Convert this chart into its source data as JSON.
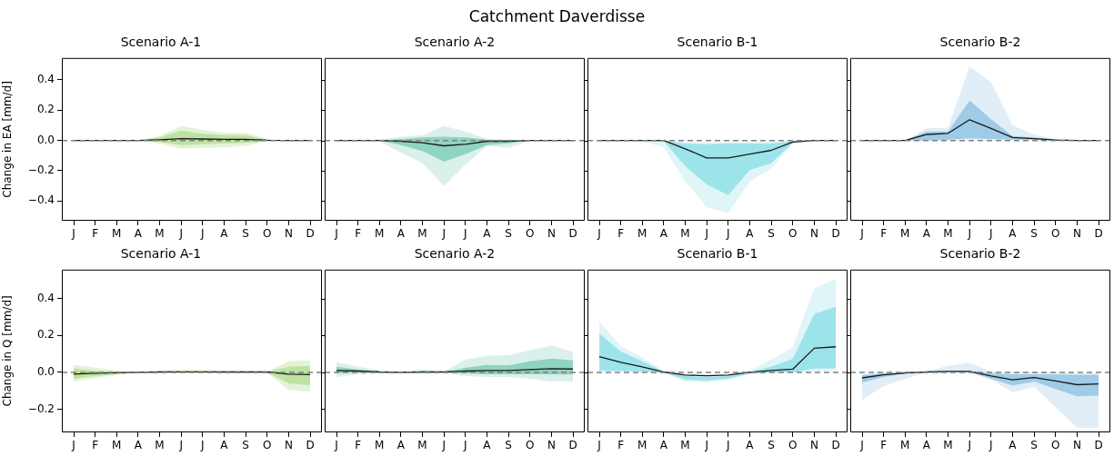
{
  "chart_data": [
    {
      "type": "line",
      "title": "Scenario A-1",
      "ylabel": "Change in EA [mm/d]",
      "annotations": [
        "Catchment Daverdisse"
      ],
      "categories": [
        "J",
        "F",
        "M",
        "A",
        "M",
        "J",
        "J",
        "A",
        "S",
        "O",
        "N",
        "D"
      ],
      "ylim": [
        -0.53,
        0.545
      ],
      "yticks": [
        {
          "value": -0.4,
          "label": "−0.4"
        },
        {
          "value": -0.2,
          "label": "−0.2"
        },
        {
          "value": 0,
          "label": "0.0"
        },
        {
          "value": 0.2,
          "label": "0.2"
        },
        {
          "value": 0.4,
          "label": "0.4"
        }
      ],
      "ref_lines": [
        {
          "axis": "y",
          "value": 0,
          "color": "#808080",
          "line_style": "dashed"
        }
      ],
      "series": [
        {
          "color": "#e3f3d6",
          "values": [
            null,
            null,
            null,
            null,
            null,
            null,
            null,
            null,
            null,
            null,
            null,
            null
          ],
          "lower": [
            0,
            0,
            0,
            0,
            -0.02,
            -0.055,
            -0.05,
            -0.045,
            -0.035,
            -0.005,
            0,
            0
          ],
          "upper": [
            0,
            0,
            0,
            0,
            0.03,
            0.095,
            0.07,
            0.05,
            0.05,
            0.01,
            0,
            0
          ]
        },
        {
          "color": "#bde3a0",
          "values": [
            null,
            null,
            null,
            null,
            null,
            null,
            null,
            null,
            null,
            null,
            null,
            null
          ],
          "lower": [
            0,
            0,
            0,
            0,
            -0.01,
            -0.03,
            -0.025,
            -0.02,
            -0.015,
            -0.002,
            0,
            0
          ],
          "upper": [
            0,
            0,
            0,
            0,
            0.02,
            0.065,
            0.045,
            0.035,
            0.035,
            0.005,
            0,
            0
          ]
        },
        {
          "color": "#1a1a1a",
          "values": [
            0,
            0,
            0,
            0,
            0.005,
            0.012,
            0.01,
            0.008,
            0.008,
            0.002,
            0,
            0
          ]
        }
      ]
    },
    {
      "type": "line",
      "title": "Scenario A-2",
      "categories": [
        "J",
        "F",
        "M",
        "A",
        "M",
        "J",
        "J",
        "A",
        "S",
        "O",
        "N",
        "D"
      ],
      "ylim": [
        -0.53,
        0.545
      ],
      "yticks": [
        -0.4,
        -0.2,
        0,
        0.2,
        0.4
      ],
      "tick_labels": "x",
      "ref_lines": [
        {
          "axis": "y",
          "value": 0,
          "color": "#808080",
          "line_style": "dashed"
        }
      ],
      "series": [
        {
          "color": "#dbf0ea",
          "values": [
            null,
            null,
            null,
            null,
            null,
            null,
            null,
            null,
            null,
            null,
            null,
            null
          ],
          "lower": [
            0,
            0,
            -0.005,
            -0.08,
            -0.15,
            -0.3,
            -0.16,
            -0.035,
            -0.05,
            -0.005,
            0,
            0
          ],
          "upper": [
            0,
            0,
            0.005,
            0.025,
            0.035,
            0.095,
            0.06,
            0.01,
            0.005,
            0,
            0,
            0
          ]
        },
        {
          "color": "#8fd3c1",
          "values": [
            null,
            null,
            null,
            null,
            null,
            null,
            null,
            null,
            null,
            null,
            null,
            null
          ],
          "lower": [
            0,
            0,
            0,
            -0.03,
            -0.07,
            -0.14,
            -0.09,
            -0.03,
            -0.02,
            0,
            0,
            0
          ],
          "upper": [
            0,
            0,
            0,
            0.01,
            0.02,
            0.025,
            0.02,
            0.005,
            0,
            0,
            0,
            0
          ]
        },
        {
          "color": "#1a1a1a",
          "values": [
            0,
            0,
            0,
            -0.005,
            -0.015,
            -0.035,
            -0.025,
            -0.005,
            -0.005,
            0,
            0,
            0
          ]
        }
      ]
    },
    {
      "type": "line",
      "title": "Scenario B-1",
      "categories": [
        "J",
        "F",
        "M",
        "A",
        "M",
        "J",
        "J",
        "A",
        "S",
        "O",
        "N",
        "D"
      ],
      "ylim": [
        -0.53,
        0.545
      ],
      "yticks": [
        -0.4,
        -0.2,
        0,
        0.2,
        0.4
      ],
      "tick_labels": "x",
      "ref_lines": [
        {
          "axis": "y",
          "value": 0,
          "color": "#808080",
          "line_style": "dashed"
        }
      ],
      "series": [
        {
          "color": "#e0f5f8",
          "values": [
            null,
            null,
            null,
            null,
            null,
            null,
            null,
            null,
            null,
            null,
            null,
            null
          ],
          "lower": [
            0,
            0,
            -0.005,
            -0.045,
            -0.27,
            -0.44,
            -0.48,
            -0.27,
            -0.185,
            -0.02,
            0,
            0
          ],
          "upper": [
            0,
            0,
            0,
            0,
            -0.01,
            -0.015,
            -0.01,
            -0.01,
            -0.01,
            0,
            0,
            0
          ]
        },
        {
          "color": "#9de3ea",
          "values": [
            null,
            null,
            null,
            null,
            null,
            null,
            null,
            null,
            null,
            null,
            null,
            null
          ],
          "lower": [
            0,
            0,
            0,
            -0.005,
            -0.17,
            -0.29,
            -0.36,
            -0.195,
            -0.15,
            -0.015,
            0,
            0
          ],
          "upper": [
            0,
            0,
            0,
            0,
            -0.02,
            -0.025,
            -0.02,
            -0.02,
            -0.02,
            -0.005,
            0,
            0
          ]
        },
        {
          "color": "#1a1a1a",
          "values": [
            0,
            0,
            0,
            0,
            -0.055,
            -0.115,
            -0.115,
            -0.09,
            -0.065,
            -0.01,
            0,
            0
          ]
        }
      ]
    },
    {
      "type": "line",
      "title": "Scenario B-2",
      "categories": [
        "J",
        "F",
        "M",
        "A",
        "M",
        "J",
        "J",
        "A",
        "S",
        "O",
        "N",
        "D"
      ],
      "ylim": [
        -0.53,
        0.545
      ],
      "yticks": [
        -0.4,
        -0.2,
        0,
        0.2,
        0.4
      ],
      "tick_labels": "x",
      "ref_lines": [
        {
          "axis": "y",
          "value": 0,
          "color": "#808080",
          "line_style": "dashed"
        }
      ],
      "series": [
        {
          "color": "#e1eef7",
          "values": [
            null,
            null,
            null,
            null,
            null,
            null,
            null,
            null,
            null,
            null,
            null,
            null
          ],
          "lower": [
            0,
            0,
            0,
            0,
            0,
            0.005,
            0.005,
            0,
            0,
            0,
            0,
            0
          ],
          "upper": [
            0,
            0,
            0,
            0.08,
            0.085,
            0.49,
            0.385,
            0.1,
            0.04,
            0.01,
            0,
            0
          ]
        },
        {
          "color": "#9fcbe6",
          "values": [
            null,
            null,
            null,
            null,
            null,
            null,
            null,
            null,
            null,
            null,
            null,
            null
          ],
          "lower": [
            0,
            0,
            0,
            0,
            0.005,
            0.015,
            0.01,
            0.005,
            0.005,
            0,
            0,
            0
          ],
          "upper": [
            0,
            0,
            0,
            0.06,
            0.06,
            0.265,
            0.14,
            0.03,
            0.02,
            0.005,
            0,
            0
          ]
        },
        {
          "color": "#1a1a1a",
          "values": [
            0,
            0,
            0,
            0.04,
            0.047,
            0.137,
            0.08,
            0.02,
            0.012,
            0.003,
            0,
            0
          ]
        }
      ]
    },
    {
      "type": "line",
      "title": "Scenario A-1",
      "ylabel": "Change in Q [mm/d]",
      "categories": [
        "J",
        "F",
        "M",
        "A",
        "M",
        "J",
        "J",
        "A",
        "S",
        "O",
        "N",
        "D"
      ],
      "ylim": [
        -0.326,
        0.558
      ],
      "yticks": [
        {
          "value": -0.2,
          "label": "−0.2"
        },
        {
          "value": 0,
          "label": "0.0"
        },
        {
          "value": 0.2,
          "label": "0.2"
        },
        {
          "value": 0.4,
          "label": "0.4"
        }
      ],
      "ref_lines": [
        {
          "axis": "y",
          "value": 0,
          "color": "#808080",
          "line_style": "dashed"
        }
      ],
      "series": [
        {
          "color": "#e3f3d6",
          "values": [
            null,
            null,
            null,
            null,
            null,
            null,
            null,
            null,
            null,
            null,
            null,
            null
          ],
          "lower": [
            -0.05,
            -0.03,
            -0.015,
            0,
            -0.002,
            -0.002,
            -0.002,
            -0.002,
            -0.002,
            -0.002,
            -0.095,
            -0.105
          ],
          "upper": [
            0.04,
            0.025,
            0.01,
            0,
            0.01,
            0.012,
            0.012,
            0.01,
            0.008,
            0.005,
            0.06,
            0.065
          ]
        },
        {
          "color": "#bde3a0",
          "values": [
            null,
            null,
            null,
            null,
            null,
            null,
            null,
            null,
            null,
            null,
            null,
            null
          ],
          "lower": [
            -0.035,
            -0.02,
            -0.01,
            0,
            0,
            0,
            0,
            0,
            0,
            0,
            -0.06,
            -0.07
          ],
          "upper": [
            0.02,
            0.01,
            0.005,
            0,
            0.005,
            0.006,
            0.006,
            0.005,
            0.005,
            0.003,
            0.03,
            0.035
          ]
        },
        {
          "color": "#1a1a1a",
          "values": [
            -0.01,
            -0.005,
            -0.002,
            0,
            0.002,
            0.003,
            0.003,
            0.002,
            0.002,
            0.002,
            -0.01,
            -0.012
          ]
        }
      ]
    },
    {
      "type": "line",
      "title": "Scenario A-2",
      "categories": [
        "J",
        "F",
        "M",
        "A",
        "M",
        "J",
        "J",
        "A",
        "S",
        "O",
        "N",
        "D"
      ],
      "ylim": [
        -0.326,
        0.558
      ],
      "yticks": [
        -0.2,
        0,
        0.2,
        0.4
      ],
      "tick_labels": "x",
      "ref_lines": [
        {
          "axis": "y",
          "value": 0,
          "color": "#808080",
          "line_style": "dashed"
        }
      ],
      "series": [
        {
          "color": "#dbf0ea",
          "values": [
            null,
            null,
            null,
            null,
            null,
            null,
            null,
            null,
            null,
            null,
            null,
            null
          ],
          "lower": [
            -0.025,
            -0.01,
            -0.005,
            -0.005,
            -0.003,
            -0.002,
            -0.02,
            -0.025,
            -0.025,
            -0.035,
            -0.05,
            -0.05
          ],
          "upper": [
            0.055,
            0.03,
            0.012,
            0.005,
            0.015,
            0.005,
            0.07,
            0.09,
            0.093,
            0.12,
            0.145,
            0.112
          ]
        },
        {
          "color": "#8fd3c1",
          "values": [
            null,
            null,
            null,
            null,
            null,
            null,
            null,
            null,
            null,
            null,
            null,
            null
          ],
          "lower": [
            -0.005,
            0,
            0,
            -0.002,
            0,
            0,
            -0.005,
            -0.01,
            -0.01,
            -0.01,
            -0.012,
            -0.012
          ],
          "upper": [
            0.03,
            0.015,
            0.005,
            0.002,
            0.005,
            0.003,
            0.025,
            0.04,
            0.038,
            0.06,
            0.075,
            0.065
          ]
        },
        {
          "color": "#1a1a1a",
          "values": [
            0.01,
            0.007,
            0.002,
            0,
            0.002,
            0.002,
            0.007,
            0.01,
            0.01,
            0.015,
            0.02,
            0.018
          ]
        }
      ]
    },
    {
      "type": "line",
      "title": "Scenario B-1",
      "categories": [
        "J",
        "F",
        "M",
        "A",
        "M",
        "J",
        "J",
        "A",
        "S",
        "O",
        "N",
        "D"
      ],
      "ylim": [
        -0.326,
        0.558
      ],
      "yticks": [
        -0.2,
        0,
        0.2,
        0.4
      ],
      "tick_labels": "x",
      "ref_lines": [
        {
          "axis": "y",
          "value": 0,
          "color": "#808080",
          "line_style": "dashed"
        }
      ],
      "series": [
        {
          "color": "#e0f5f8",
          "values": [
            null,
            null,
            null,
            null,
            null,
            null,
            null,
            null,
            null,
            null,
            null,
            null
          ],
          "lower": [
            0.005,
            0.003,
            0,
            -0.003,
            -0.05,
            -0.055,
            -0.04,
            -0.01,
            -0.005,
            0,
            0.005,
            0.01
          ],
          "upper": [
            0.274,
            0.144,
            0.08,
            0.01,
            -0.01,
            -0.015,
            -0.01,
            0.01,
            0.07,
            0.135,
            0.456,
            0.509
          ]
        },
        {
          "color": "#9de3ea",
          "values": [
            null,
            null,
            null,
            null,
            null,
            null,
            null,
            null,
            null,
            null,
            null,
            null
          ],
          "lower": [
            0.01,
            0.008,
            0.005,
            0,
            -0.04,
            -0.045,
            -0.035,
            -0.005,
            0,
            0,
            0.02,
            0.022
          ],
          "upper": [
            0.21,
            0.113,
            0.06,
            0.005,
            -0.02,
            -0.025,
            -0.02,
            0.002,
            0.03,
            0.074,
            0.317,
            0.357
          ]
        },
        {
          "color": "#1a1a1a",
          "values": [
            0.085,
            0.054,
            0.03,
            0.002,
            -0.015,
            -0.018,
            -0.015,
            0,
            0.01,
            0.017,
            0.131,
            0.139
          ]
        }
      ]
    },
    {
      "type": "line",
      "title": "Scenario B-2",
      "categories": [
        "J",
        "F",
        "M",
        "A",
        "M",
        "J",
        "J",
        "A",
        "S",
        "O",
        "N",
        "D"
      ],
      "ylim": [
        -0.326,
        0.558
      ],
      "yticks": [
        -0.2,
        0,
        0.2,
        0.4
      ],
      "tick_labels": "x",
      "ref_lines": [
        {
          "axis": "y",
          "value": 0,
          "color": "#808080",
          "line_style": "dashed"
        }
      ],
      "series": [
        {
          "color": "#e1eef7",
          "values": [
            null,
            null,
            null,
            null,
            null,
            null,
            null,
            null,
            null,
            null,
            null,
            null
          ],
          "lower": [
            -0.15,
            -0.074,
            -0.035,
            0,
            -0.002,
            -0.002,
            -0.04,
            -0.109,
            -0.078,
            -0.19,
            -0.3,
            -0.3
          ],
          "upper": [
            -0.01,
            0,
            0.005,
            0.005,
            0.035,
            0.052,
            0.005,
            0,
            0,
            0,
            -0.005,
            -0.005
          ]
        },
        {
          "color": "#9fcbe6",
          "values": [
            null,
            null,
            null,
            null,
            null,
            null,
            null,
            null,
            null,
            null,
            null,
            null
          ],
          "lower": [
            -0.056,
            -0.025,
            -0.008,
            0,
            0.002,
            0.002,
            -0.035,
            -0.072,
            -0.05,
            -0.09,
            -0.13,
            -0.126
          ],
          "upper": [
            -0.015,
            -0.005,
            0,
            0.003,
            0.008,
            0.008,
            -0.005,
            -0.01,
            -0.01,
            -0.012,
            -0.013,
            -0.013
          ]
        },
        {
          "color": "#1a1a1a",
          "values": [
            -0.03,
            -0.013,
            -0.003,
            0.002,
            0.005,
            0.005,
            -0.02,
            -0.041,
            -0.028,
            -0.047,
            -0.067,
            -0.063
          ]
        }
      ]
    }
  ]
}
